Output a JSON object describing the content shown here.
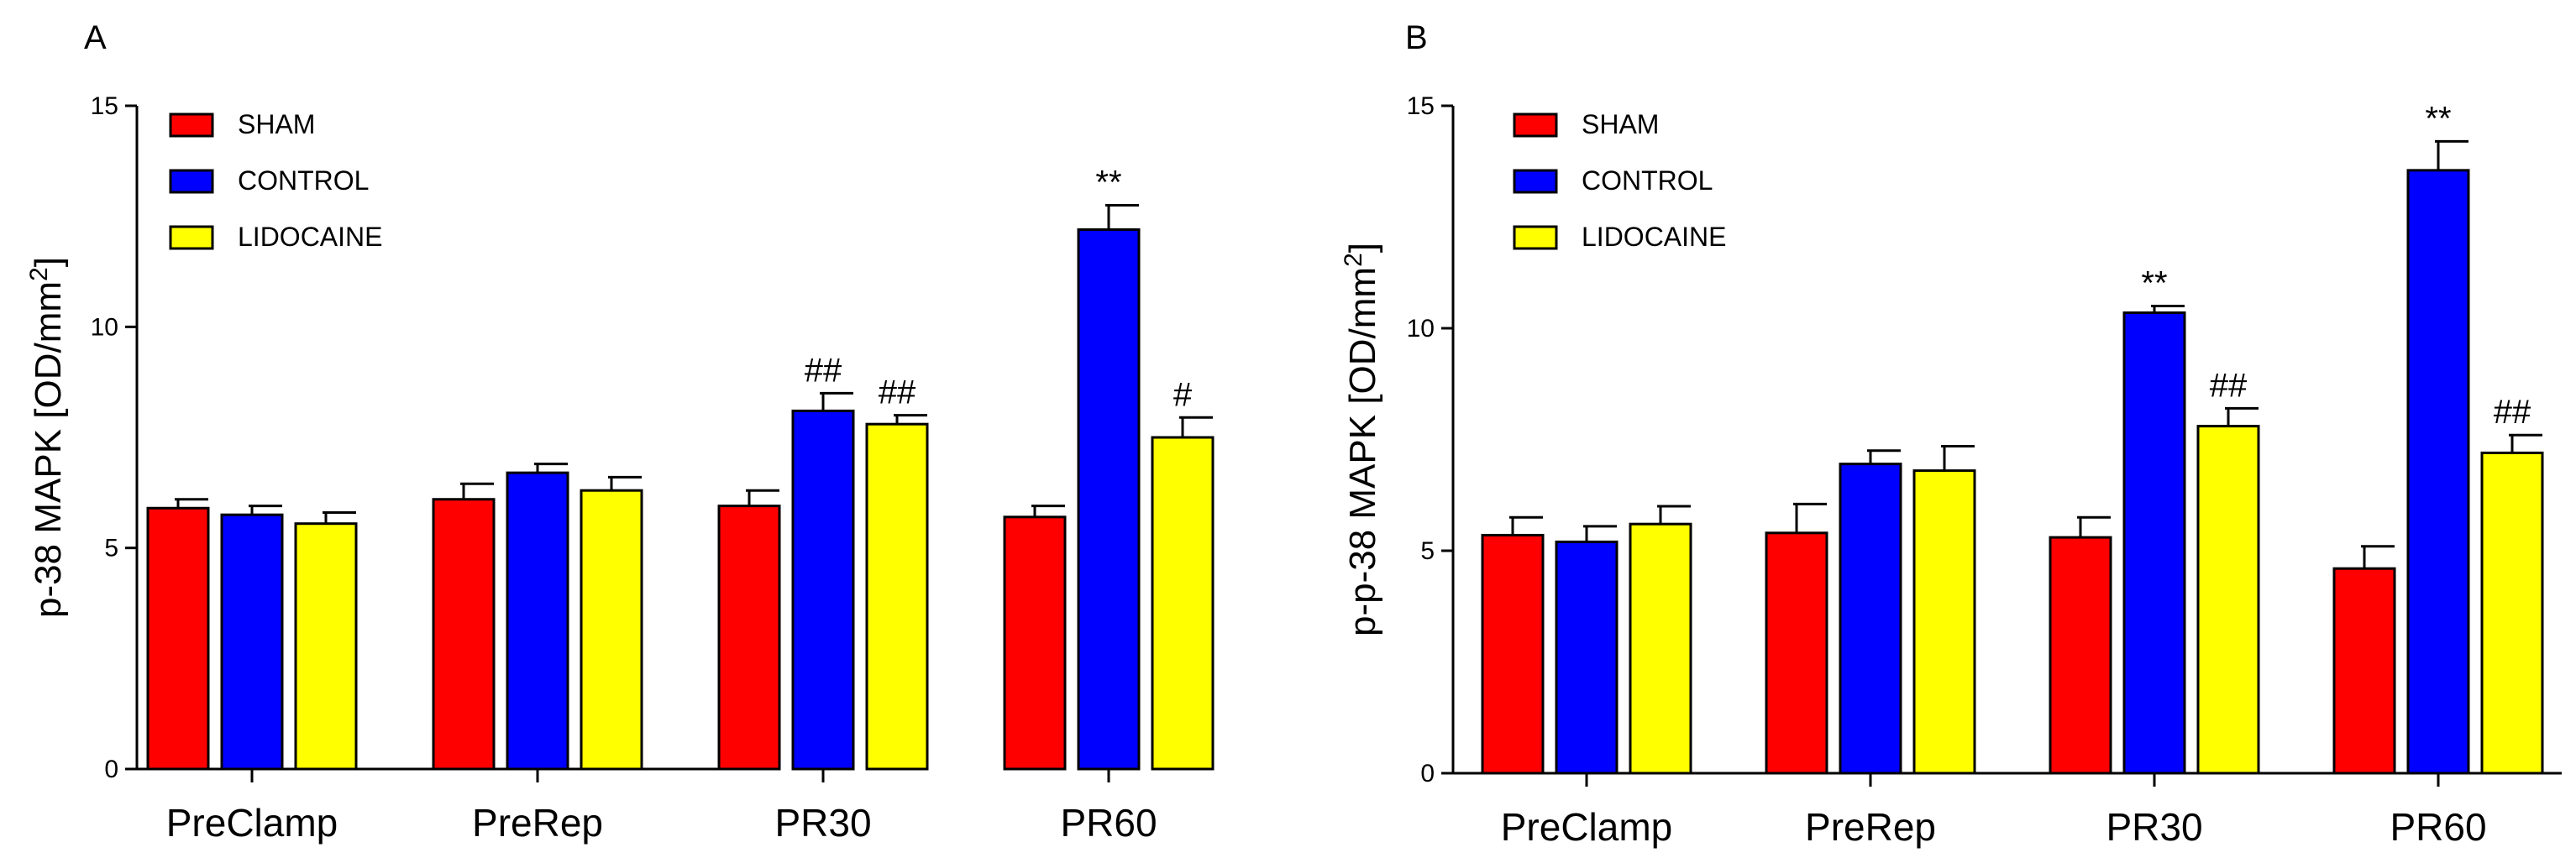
{
  "colors": {
    "sham": "#ff0000",
    "control": "#0000ff",
    "lidocaine": "#ffff00"
  },
  "chart_data": [
    {
      "type": "bar",
      "panel_label": "A",
      "ylabel": "p-38 MAPK [OD/mm",
      "ylabel_sup": "2",
      "ylabel_close": "]",
      "ylim": [
        0,
        15
      ],
      "yticks": [
        0,
        5,
        10,
        15
      ],
      "yticklabels": [
        "0",
        "5",
        "10",
        "15"
      ],
      "categories": [
        "PreClamp",
        "PreRep",
        "PR30",
        "PR60"
      ],
      "legend": [
        "SHAM",
        "CONTROL",
        "LIDOCAINE"
      ],
      "series": [
        {
          "name": "SHAM",
          "values": [
            5.9,
            6.1,
            5.95,
            5.7
          ],
          "errors": [
            0.2,
            0.35,
            0.35,
            0.25
          ],
          "annotations": [
            "",
            "",
            "",
            ""
          ]
        },
        {
          "name": "CONTROL",
          "values": [
            5.75,
            6.7,
            8.1,
            12.2
          ],
          "errors": [
            0.2,
            0.2,
            0.4,
            0.55
          ],
          "annotations": [
            "",
            "",
            "##",
            "**"
          ]
        },
        {
          "name": "LIDOCAINE",
          "values": [
            5.55,
            6.3,
            7.8,
            7.5
          ],
          "errors": [
            0.25,
            0.3,
            0.2,
            0.45
          ],
          "annotations": [
            "",
            "",
            "##",
            "#"
          ]
        }
      ]
    },
    {
      "type": "bar",
      "panel_label": "B",
      "ylabel": "p-p-38 MAPK [OD/mm",
      "ylabel_sup": "2",
      "ylabel_close": "]",
      "ylim": [
        0,
        15
      ],
      "yticks": [
        0,
        5,
        10,
        15
      ],
      "yticklabels": [
        "0",
        "5",
        "10",
        "15"
      ],
      "categories": [
        "PreClamp",
        "PreRep",
        "PR30",
        "PR60"
      ],
      "legend": [
        "SHAM",
        "CONTROL",
        "LIDOCAINE"
      ],
      "series": [
        {
          "name": "SHAM",
          "values": [
            5.35,
            5.4,
            5.3,
            4.6
          ],
          "errors": [
            0.4,
            0.65,
            0.45,
            0.5
          ],
          "annotations": [
            "",
            "",
            "",
            ""
          ]
        },
        {
          "name": "CONTROL",
          "values": [
            5.2,
            6.95,
            10.35,
            13.55
          ],
          "errors": [
            0.35,
            0.3,
            0.15,
            0.65
          ],
          "annotations": [
            "",
            "",
            "**",
            "**"
          ]
        },
        {
          "name": "LIDOCAINE",
          "values": [
            5.6,
            6.8,
            7.8,
            7.2
          ],
          "errors": [
            0.4,
            0.55,
            0.4,
            0.4
          ],
          "annotations": [
            "",
            "",
            "##",
            "##"
          ]
        }
      ]
    }
  ]
}
